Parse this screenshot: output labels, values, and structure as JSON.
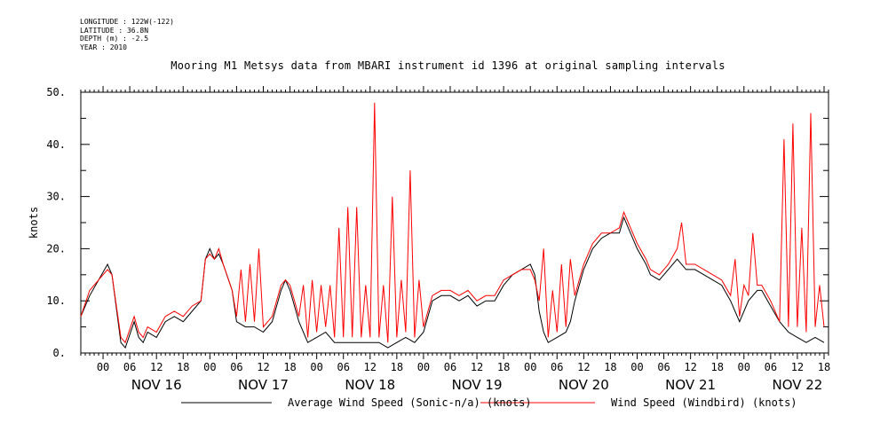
{
  "header": {
    "longitude": "LONGITUDE : 122W(-122)",
    "latitude": "LATITUDE : 36.8N",
    "depth": "DEPTH (m) : -2.5",
    "year": "YEAR : 2010"
  },
  "chart_data": {
    "type": "line",
    "title": "Mooring M1 Metsys data from MBARI instrument id 1396 at original sampling intervals",
    "ylabel": "knots",
    "ylim": [
      0,
      50
    ],
    "y_ticks": [
      "0.",
      "10.",
      "20.",
      "30.",
      "40.",
      "50."
    ],
    "x_hour_ticks": [
      "00",
      "06",
      "12",
      "18",
      "00",
      "06",
      "12",
      "18",
      "00",
      "06",
      "12",
      "18",
      "00",
      "06",
      "12",
      "18",
      "00",
      "06",
      "12",
      "18",
      "00",
      "06",
      "12",
      "18",
      "00",
      "06",
      "12",
      "18"
    ],
    "day_labels": [
      "NOV 16",
      "NOV 17",
      "NOV 18",
      "NOV 19",
      "NOV 20",
      "NOV 21",
      "NOV 22"
    ],
    "x_hours_range": [
      -5,
      163
    ],
    "grid": false,
    "legend_position": "bottom",
    "series": [
      {
        "name": "Average Wind Speed (Sonic-n/a) (knots)",
        "color": "#000000",
        "points": [
          [
            -5,
            7
          ],
          [
            -3,
            11
          ],
          [
            -1,
            14
          ],
          [
            1,
            17
          ],
          [
            2,
            15
          ],
          [
            4,
            2
          ],
          [
            5,
            1
          ],
          [
            7,
            6
          ],
          [
            8,
            3
          ],
          [
            9,
            2
          ],
          [
            10,
            4
          ],
          [
            12,
            3
          ],
          [
            14,
            6
          ],
          [
            16,
            7
          ],
          [
            18,
            6
          ],
          [
            20,
            8
          ],
          [
            22,
            10
          ],
          [
            23,
            18
          ],
          [
            24,
            20
          ],
          [
            25,
            18
          ],
          [
            26,
            19
          ],
          [
            27,
            17
          ],
          [
            29,
            12
          ],
          [
            30,
            6
          ],
          [
            32,
            5
          ],
          [
            34,
            5
          ],
          [
            36,
            4
          ],
          [
            38,
            6
          ],
          [
            40,
            12
          ],
          [
            41,
            14
          ],
          [
            42,
            12
          ],
          [
            44,
            6
          ],
          [
            46,
            2
          ],
          [
            48,
            3
          ],
          [
            50,
            4
          ],
          [
            52,
            2
          ],
          [
            54,
            2
          ],
          [
            56,
            2
          ],
          [
            58,
            2
          ],
          [
            60,
            2
          ],
          [
            62,
            2
          ],
          [
            64,
            1
          ],
          [
            66,
            2
          ],
          [
            68,
            3
          ],
          [
            70,
            2
          ],
          [
            72,
            4
          ],
          [
            74,
            10
          ],
          [
            76,
            11
          ],
          [
            78,
            11
          ],
          [
            80,
            10
          ],
          [
            82,
            11
          ],
          [
            84,
            9
          ],
          [
            86,
            10
          ],
          [
            88,
            10
          ],
          [
            90,
            13
          ],
          [
            92,
            15
          ],
          [
            94,
            16
          ],
          [
            96,
            17
          ],
          [
            97,
            15
          ],
          [
            98,
            8
          ],
          [
            99,
            4
          ],
          [
            100,
            2
          ],
          [
            102,
            3
          ],
          [
            104,
            4
          ],
          [
            105,
            6
          ],
          [
            106,
            10
          ],
          [
            108,
            16
          ],
          [
            110,
            20
          ],
          [
            112,
            22
          ],
          [
            114,
            23
          ],
          [
            116,
            23
          ],
          [
            117,
            26
          ],
          [
            118,
            24
          ],
          [
            120,
            20
          ],
          [
            122,
            17
          ],
          [
            123,
            15
          ],
          [
            125,
            14
          ],
          [
            127,
            16
          ],
          [
            129,
            18
          ],
          [
            131,
            16
          ],
          [
            133,
            16
          ],
          [
            135,
            15
          ],
          [
            137,
            14
          ],
          [
            139,
            13
          ],
          [
            141,
            10
          ],
          [
            143,
            6
          ],
          [
            145,
            10
          ],
          [
            147,
            12
          ],
          [
            148,
            12
          ],
          [
            150,
            9
          ],
          [
            152,
            6
          ],
          [
            154,
            4
          ],
          [
            156,
            3
          ],
          [
            158,
            2
          ],
          [
            160,
            3
          ],
          [
            162,
            2
          ]
        ]
      },
      {
        "name": "Wind Speed (Windbird) (knots)",
        "color": "#ff0000",
        "points": [
          [
            -5,
            7
          ],
          [
            -3,
            12
          ],
          [
            -1,
            14
          ],
          [
            1,
            16
          ],
          [
            2,
            15
          ],
          [
            4,
            3
          ],
          [
            5,
            2
          ],
          [
            7,
            7
          ],
          [
            8,
            4
          ],
          [
            9,
            3
          ],
          [
            10,
            5
          ],
          [
            12,
            4
          ],
          [
            14,
            7
          ],
          [
            16,
            8
          ],
          [
            18,
            7
          ],
          [
            20,
            9
          ],
          [
            22,
            10
          ],
          [
            23,
            18
          ],
          [
            24,
            19
          ],
          [
            25,
            18
          ],
          [
            26,
            20
          ],
          [
            27,
            17
          ],
          [
            29,
            12
          ],
          [
            30,
            7
          ],
          [
            31,
            16
          ],
          [
            32,
            6
          ],
          [
            33,
            17
          ],
          [
            34,
            6
          ],
          [
            35,
            20
          ],
          [
            36,
            5
          ],
          [
            38,
            7
          ],
          [
            40,
            13
          ],
          [
            41,
            14
          ],
          [
            42,
            13
          ],
          [
            44,
            7
          ],
          [
            45,
            13
          ],
          [
            46,
            3
          ],
          [
            47,
            14
          ],
          [
            48,
            4
          ],
          [
            49,
            13
          ],
          [
            50,
            5
          ],
          [
            51,
            13
          ],
          [
            52,
            3
          ],
          [
            53,
            24
          ],
          [
            54,
            3
          ],
          [
            55,
            28
          ],
          [
            56,
            3
          ],
          [
            57,
            28
          ],
          [
            58,
            3
          ],
          [
            59,
            13
          ],
          [
            60,
            3
          ],
          [
            61,
            48
          ],
          [
            62,
            3
          ],
          [
            63,
            13
          ],
          [
            64,
            2
          ],
          [
            65,
            30
          ],
          [
            66,
            3
          ],
          [
            67,
            14
          ],
          [
            68,
            4
          ],
          [
            69,
            35
          ],
          [
            70,
            3
          ],
          [
            71,
            14
          ],
          [
            72,
            5
          ],
          [
            74,
            11
          ],
          [
            76,
            12
          ],
          [
            78,
            12
          ],
          [
            80,
            11
          ],
          [
            82,
            12
          ],
          [
            84,
            10
          ],
          [
            86,
            11
          ],
          [
            88,
            11
          ],
          [
            90,
            14
          ],
          [
            92,
            15
          ],
          [
            94,
            16
          ],
          [
            96,
            16
          ],
          [
            97,
            14
          ],
          [
            98,
            10
          ],
          [
            99,
            20
          ],
          [
            100,
            3
          ],
          [
            101,
            12
          ],
          [
            102,
            4
          ],
          [
            103,
            17
          ],
          [
            104,
            5
          ],
          [
            105,
            18
          ],
          [
            106,
            11
          ],
          [
            108,
            17
          ],
          [
            110,
            21
          ],
          [
            112,
            23
          ],
          [
            114,
            23
          ],
          [
            116,
            24
          ],
          [
            117,
            27
          ],
          [
            118,
            25
          ],
          [
            120,
            21
          ],
          [
            122,
            18
          ],
          [
            123,
            16
          ],
          [
            125,
            15
          ],
          [
            127,
            17
          ],
          [
            129,
            20
          ],
          [
            130,
            25
          ],
          [
            131,
            17
          ],
          [
            133,
            17
          ],
          [
            135,
            16
          ],
          [
            137,
            15
          ],
          [
            139,
            14
          ],
          [
            141,
            11
          ],
          [
            142,
            18
          ],
          [
            143,
            7
          ],
          [
            144,
            13
          ],
          [
            145,
            11
          ],
          [
            146,
            23
          ],
          [
            147,
            13
          ],
          [
            148,
            13
          ],
          [
            150,
            10
          ],
          [
            152,
            6
          ],
          [
            153,
            41
          ],
          [
            154,
            5
          ],
          [
            155,
            44
          ],
          [
            156,
            5
          ],
          [
            157,
            24
          ],
          [
            158,
            4
          ],
          [
            159,
            46
          ],
          [
            160,
            5
          ],
          [
            161,
            13
          ],
          [
            162,
            5
          ]
        ]
      }
    ]
  }
}
